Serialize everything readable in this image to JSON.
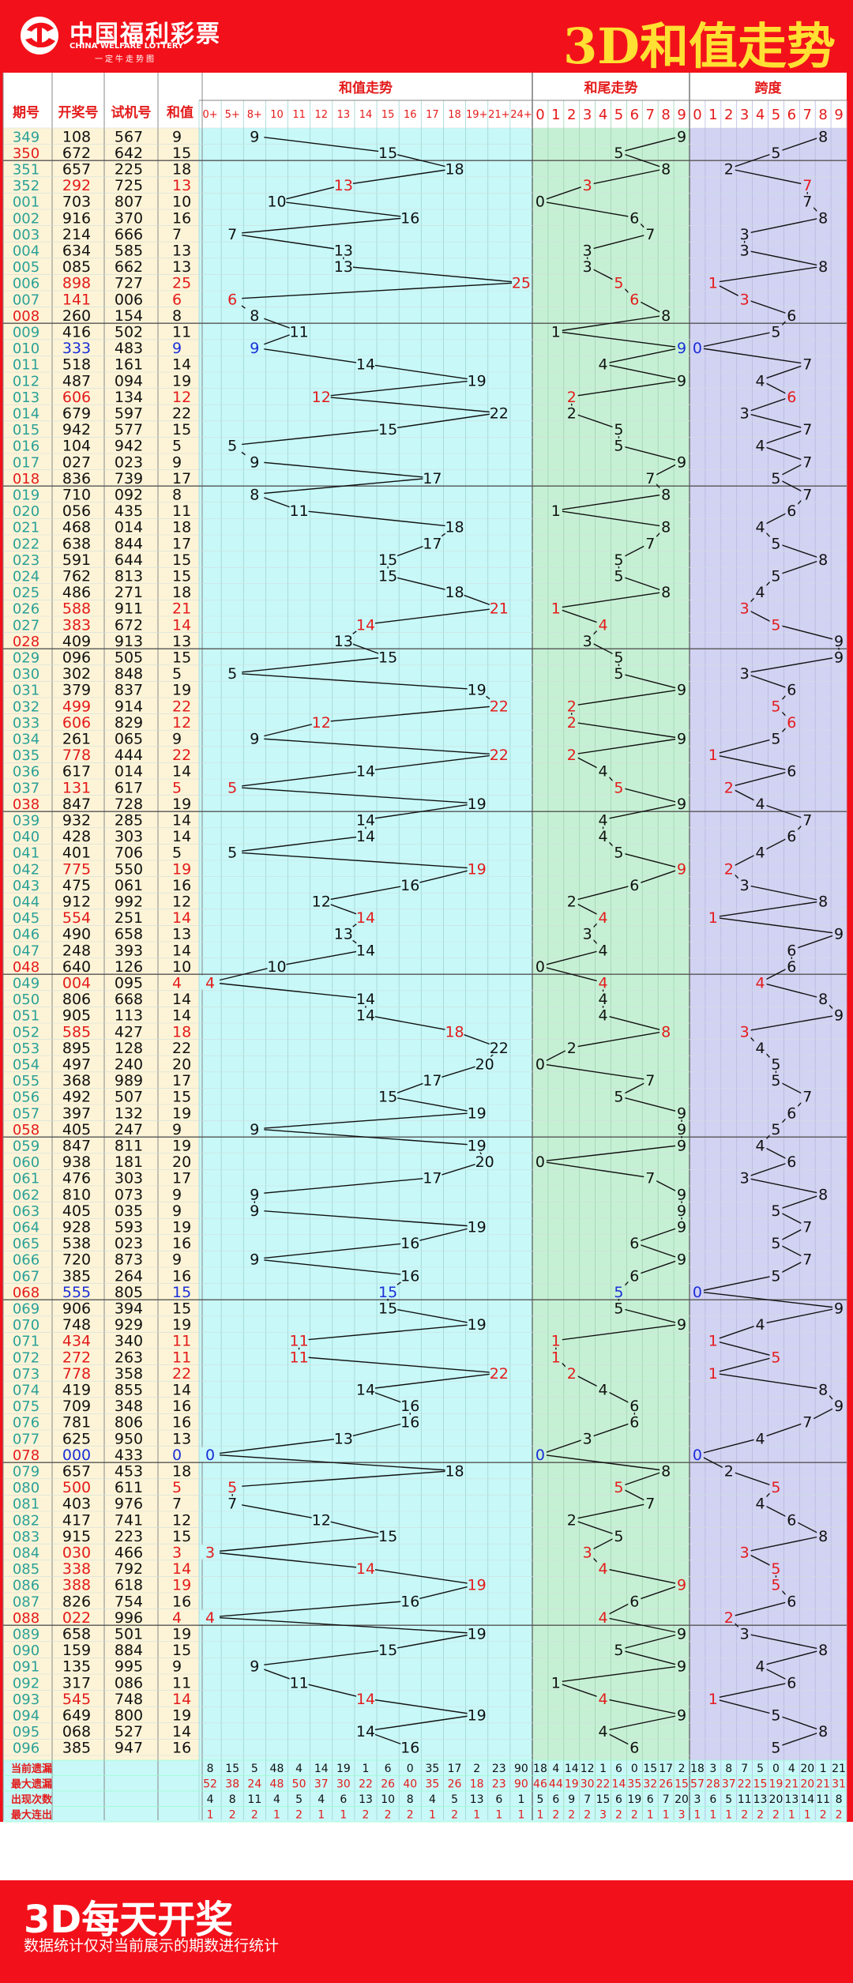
{
  "header": {
    "logo_name": "中国福利彩票",
    "logo_en": "CHINA WELFARE LOTTERY",
    "logo_sub": "一定牛走势图",
    "title": "3D和值走势"
  },
  "columns": {
    "period": "期号",
    "draw": "开奖号",
    "test": "试机号",
    "sum": "和值",
    "sum_trend": "和值走势",
    "tail_trend": "和尾走势",
    "span": "跨度"
  },
  "sum_bins": [
    "0+",
    "5+",
    "8+",
    "10",
    "11",
    "12",
    "13",
    "14",
    "15",
    "16",
    "17",
    "18",
    "19+",
    "21+",
    "24+"
  ],
  "digits": [
    "0",
    "1",
    "2",
    "3",
    "4",
    "5",
    "6",
    "7",
    "8",
    "9"
  ],
  "colors": {
    "red": "#e41b1b",
    "blue": "#1b2fd8",
    "black": "#111111",
    "frame": "#f2111a",
    "sum_bg": "#c8f8f8",
    "tail_bg": "#c6f0d4",
    "span_bg": "#d2d2f2",
    "left_bg": "#fdf4d7",
    "stat_bg": "#c8f8f8",
    "period_text": "#2aa198"
  },
  "chart_data": {
    "type": "line",
    "rows": [
      {
        "p": "349",
        "draw": "108",
        "test": "567",
        "sum": 9,
        "tail": 9,
        "span": 8
      },
      {
        "p": "350",
        "draw": "672",
        "test": "642",
        "sum": 15,
        "tail": 5,
        "span": 5
      },
      {
        "p": "351",
        "draw": "657",
        "test": "225",
        "sum": 18,
        "tail": 8,
        "span": 2
      },
      {
        "p": "352",
        "draw": "292",
        "test": "725",
        "sum": 13,
        "tail": 3,
        "span": 7
      },
      {
        "p": "001",
        "draw": "703",
        "test": "807",
        "sum": 10,
        "tail": 0,
        "span": 7
      },
      {
        "p": "002",
        "draw": "916",
        "test": "370",
        "sum": 16,
        "tail": 6,
        "span": 8
      },
      {
        "p": "003",
        "draw": "214",
        "test": "666",
        "sum": 7,
        "tail": 7,
        "span": 3
      },
      {
        "p": "004",
        "draw": "634",
        "test": "585",
        "sum": 13,
        "tail": 3,
        "span": 3
      },
      {
        "p": "005",
        "draw": "085",
        "test": "662",
        "sum": 13,
        "tail": 3,
        "span": 8
      },
      {
        "p": "006",
        "draw": "898",
        "test": "727",
        "sum": 25,
        "tail": 5,
        "span": 1
      },
      {
        "p": "007",
        "draw": "141",
        "test": "006",
        "sum": 6,
        "tail": 6,
        "span": 3
      },
      {
        "p": "008",
        "draw": "260",
        "test": "154",
        "sum": 8,
        "tail": 8,
        "span": 6
      },
      {
        "p": "009",
        "draw": "416",
        "test": "502",
        "sum": 11,
        "tail": 1,
        "span": 5
      },
      {
        "p": "010",
        "draw": "333",
        "test": "483",
        "sum": 9,
        "tail": 9,
        "span": 0
      },
      {
        "p": "011",
        "draw": "518",
        "test": "161",
        "sum": 14,
        "tail": 4,
        "span": 7
      },
      {
        "p": "012",
        "draw": "487",
        "test": "094",
        "sum": 19,
        "tail": 9,
        "span": 4
      },
      {
        "p": "013",
        "draw": "606",
        "test": "134",
        "sum": 12,
        "tail": 2,
        "span": 6
      },
      {
        "p": "014",
        "draw": "679",
        "test": "597",
        "sum": 22,
        "tail": 2,
        "span": 3
      },
      {
        "p": "015",
        "draw": "942",
        "test": "577",
        "sum": 15,
        "tail": 5,
        "span": 7
      },
      {
        "p": "016",
        "draw": "104",
        "test": "942",
        "sum": 5,
        "tail": 5,
        "span": 4
      },
      {
        "p": "017",
        "draw": "027",
        "test": "023",
        "sum": 9,
        "tail": 9,
        "span": 7
      },
      {
        "p": "018",
        "draw": "836",
        "test": "739",
        "sum": 17,
        "tail": 7,
        "span": 5
      },
      {
        "p": "019",
        "draw": "710",
        "test": "092",
        "sum": 8,
        "tail": 8,
        "span": 7
      },
      {
        "p": "020",
        "draw": "056",
        "test": "435",
        "sum": 11,
        "tail": 1,
        "span": 6
      },
      {
        "p": "021",
        "draw": "468",
        "test": "014",
        "sum": 18,
        "tail": 8,
        "span": 4
      },
      {
        "p": "022",
        "draw": "638",
        "test": "844",
        "sum": 17,
        "tail": 7,
        "span": 5
      },
      {
        "p": "023",
        "draw": "591",
        "test": "644",
        "sum": 15,
        "tail": 5,
        "span": 8
      },
      {
        "p": "024",
        "draw": "762",
        "test": "813",
        "sum": 15,
        "tail": 5,
        "span": 5
      },
      {
        "p": "025",
        "draw": "486",
        "test": "271",
        "sum": 18,
        "tail": 8,
        "span": 4
      },
      {
        "p": "026",
        "draw": "588",
        "test": "911",
        "sum": 21,
        "tail": 1,
        "span": 3
      },
      {
        "p": "027",
        "draw": "383",
        "test": "672",
        "sum": 14,
        "tail": 4,
        "span": 5
      },
      {
        "p": "028",
        "draw": "409",
        "test": "913",
        "sum": 13,
        "tail": 3,
        "span": 9
      },
      {
        "p": "029",
        "draw": "096",
        "test": "505",
        "sum": 15,
        "tail": 5,
        "span": 9
      },
      {
        "p": "030",
        "draw": "302",
        "test": "848",
        "sum": 5,
        "tail": 5,
        "span": 3
      },
      {
        "p": "031",
        "draw": "379",
        "test": "837",
        "sum": 19,
        "tail": 9,
        "span": 6
      },
      {
        "p": "032",
        "draw": "499",
        "test": "914",
        "sum": 22,
        "tail": 2,
        "span": 5
      },
      {
        "p": "033",
        "draw": "606",
        "test": "829",
        "sum": 12,
        "tail": 2,
        "span": 6
      },
      {
        "p": "034",
        "draw": "261",
        "test": "065",
        "sum": 9,
        "tail": 9,
        "span": 5
      },
      {
        "p": "035",
        "draw": "778",
        "test": "444",
        "sum": 22,
        "tail": 2,
        "span": 1
      },
      {
        "p": "036",
        "draw": "617",
        "test": "014",
        "sum": 14,
        "tail": 4,
        "span": 6
      },
      {
        "p": "037",
        "draw": "131",
        "test": "617",
        "sum": 5,
        "tail": 5,
        "span": 2
      },
      {
        "p": "038",
        "draw": "847",
        "test": "728",
        "sum": 19,
        "tail": 9,
        "span": 4
      },
      {
        "p": "039",
        "draw": "932",
        "test": "285",
        "sum": 14,
        "tail": 4,
        "span": 7
      },
      {
        "p": "040",
        "draw": "428",
        "test": "303",
        "sum": 14,
        "tail": 4,
        "span": 6
      },
      {
        "p": "041",
        "draw": "401",
        "test": "706",
        "sum": 5,
        "tail": 5,
        "span": 4
      },
      {
        "p": "042",
        "draw": "775",
        "test": "550",
        "sum": 19,
        "tail": 9,
        "span": 2
      },
      {
        "p": "043",
        "draw": "475",
        "test": "061",
        "sum": 16,
        "tail": 6,
        "span": 3
      },
      {
        "p": "044",
        "draw": "912",
        "test": "992",
        "sum": 12,
        "tail": 2,
        "span": 8
      },
      {
        "p": "045",
        "draw": "554",
        "test": "251",
        "sum": 14,
        "tail": 4,
        "span": 1
      },
      {
        "p": "046",
        "draw": "490",
        "test": "658",
        "sum": 13,
        "tail": 3,
        "span": 9
      },
      {
        "p": "047",
        "draw": "248",
        "test": "393",
        "sum": 14,
        "tail": 4,
        "span": 6
      },
      {
        "p": "048",
        "draw": "640",
        "test": "126",
        "sum": 10,
        "tail": 0,
        "span": 6
      },
      {
        "p": "049",
        "draw": "004",
        "test": "095",
        "sum": 4,
        "tail": 4,
        "span": 4
      },
      {
        "p": "050",
        "draw": "806",
        "test": "668",
        "sum": 14,
        "tail": 4,
        "span": 8
      },
      {
        "p": "051",
        "draw": "905",
        "test": "113",
        "sum": 14,
        "tail": 4,
        "span": 9
      },
      {
        "p": "052",
        "draw": "585",
        "test": "427",
        "sum": 18,
        "tail": 8,
        "span": 3
      },
      {
        "p": "053",
        "draw": "895",
        "test": "128",
        "sum": 22,
        "tail": 2,
        "span": 4
      },
      {
        "p": "054",
        "draw": "497",
        "test": "240",
        "sum": 20,
        "tail": 0,
        "span": 5
      },
      {
        "p": "055",
        "draw": "368",
        "test": "989",
        "sum": 17,
        "tail": 7,
        "span": 5
      },
      {
        "p": "056",
        "draw": "492",
        "test": "507",
        "sum": 15,
        "tail": 5,
        "span": 7
      },
      {
        "p": "057",
        "draw": "397",
        "test": "132",
        "sum": 19,
        "tail": 9,
        "span": 6
      },
      {
        "p": "058",
        "draw": "405",
        "test": "247",
        "sum": 9,
        "tail": 9,
        "span": 5
      },
      {
        "p": "059",
        "draw": "847",
        "test": "811",
        "sum": 19,
        "tail": 9,
        "span": 4
      },
      {
        "p": "060",
        "draw": "938",
        "test": "181",
        "sum": 20,
        "tail": 0,
        "span": 6
      },
      {
        "p": "061",
        "draw": "476",
        "test": "303",
        "sum": 17,
        "tail": 7,
        "span": 3
      },
      {
        "p": "062",
        "draw": "810",
        "test": "073",
        "sum": 9,
        "tail": 9,
        "span": 8
      },
      {
        "p": "063",
        "draw": "405",
        "test": "035",
        "sum": 9,
        "tail": 9,
        "span": 5
      },
      {
        "p": "064",
        "draw": "928",
        "test": "593",
        "sum": 19,
        "tail": 9,
        "span": 7
      },
      {
        "p": "065",
        "draw": "538",
        "test": "023",
        "sum": 16,
        "tail": 6,
        "span": 5
      },
      {
        "p": "066",
        "draw": "720",
        "test": "873",
        "sum": 9,
        "tail": 9,
        "span": 7
      },
      {
        "p": "067",
        "draw": "385",
        "test": "264",
        "sum": 16,
        "tail": 6,
        "span": 5
      },
      {
        "p": "068",
        "draw": "555",
        "test": "805",
        "sum": 15,
        "tail": 5,
        "span": 0
      },
      {
        "p": "069",
        "draw": "906",
        "test": "394",
        "sum": 15,
        "tail": 5,
        "span": 9
      },
      {
        "p": "070",
        "draw": "748",
        "test": "929",
        "sum": 19,
        "tail": 9,
        "span": 4
      },
      {
        "p": "071",
        "draw": "434",
        "test": "340",
        "sum": 11,
        "tail": 1,
        "span": 1
      },
      {
        "p": "072",
        "draw": "272",
        "test": "263",
        "sum": 11,
        "tail": 1,
        "span": 5
      },
      {
        "p": "073",
        "draw": "778",
        "test": "358",
        "sum": 22,
        "tail": 2,
        "span": 1
      },
      {
        "p": "074",
        "draw": "419",
        "test": "855",
        "sum": 14,
        "tail": 4,
        "span": 8
      },
      {
        "p": "075",
        "draw": "709",
        "test": "348",
        "sum": 16,
        "tail": 6,
        "span": 9
      },
      {
        "p": "076",
        "draw": "781",
        "test": "806",
        "sum": 16,
        "tail": 6,
        "span": 7
      },
      {
        "p": "077",
        "draw": "625",
        "test": "950",
        "sum": 13,
        "tail": 3,
        "span": 4
      },
      {
        "p": "078",
        "draw": "000",
        "test": "433",
        "sum": 0,
        "tail": 0,
        "span": 0
      },
      {
        "p": "079",
        "draw": "657",
        "test": "453",
        "sum": 18,
        "tail": 8,
        "span": 2
      },
      {
        "p": "080",
        "draw": "500",
        "test": "611",
        "sum": 5,
        "tail": 5,
        "span": 5
      },
      {
        "p": "081",
        "draw": "403",
        "test": "976",
        "sum": 7,
        "tail": 7,
        "span": 4
      },
      {
        "p": "082",
        "draw": "417",
        "test": "741",
        "sum": 12,
        "tail": 2,
        "span": 6
      },
      {
        "p": "083",
        "draw": "915",
        "test": "223",
        "sum": 15,
        "tail": 5,
        "span": 8
      },
      {
        "p": "084",
        "draw": "030",
        "test": "466",
        "sum": 3,
        "tail": 3,
        "span": 3
      },
      {
        "p": "085",
        "draw": "338",
        "test": "792",
        "sum": 14,
        "tail": 4,
        "span": 5
      },
      {
        "p": "086",
        "draw": "388",
        "test": "618",
        "sum": 19,
        "tail": 9,
        "span": 5
      },
      {
        "p": "087",
        "draw": "826",
        "test": "754",
        "sum": 16,
        "tail": 6,
        "span": 6
      },
      {
        "p": "088",
        "draw": "022",
        "test": "996",
        "sum": 4,
        "tail": 4,
        "span": 2
      },
      {
        "p": "089",
        "draw": "658",
        "test": "501",
        "sum": 19,
        "tail": 9,
        "span": 3
      },
      {
        "p": "090",
        "draw": "159",
        "test": "884",
        "sum": 15,
        "tail": 5,
        "span": 8
      },
      {
        "p": "091",
        "draw": "135",
        "test": "995",
        "sum": 9,
        "tail": 9,
        "span": 4
      },
      {
        "p": "092",
        "draw": "317",
        "test": "086",
        "sum": 11,
        "tail": 1,
        "span": 6
      },
      {
        "p": "093",
        "draw": "545",
        "test": "748",
        "sum": 14,
        "tail": 4,
        "span": 1
      },
      {
        "p": "094",
        "draw": "649",
        "test": "800",
        "sum": 19,
        "tail": 9,
        "span": 5
      },
      {
        "p": "095",
        "draw": "068",
        "test": "527",
        "sum": 14,
        "tail": 4,
        "span": 8
      },
      {
        "p": "096",
        "draw": "385",
        "test": "947",
        "sum": 16,
        "tail": 6,
        "span": 5
      }
    ],
    "blue_rows": [
      "010",
      "068",
      "078"
    ],
    "stats": [
      {
        "label": "当前遗漏",
        "sum": [
          8,
          15,
          5,
          48,
          4,
          14,
          19,
          1,
          6,
          0,
          35,
          17,
          2,
          23,
          90
        ],
        "tail": [
          18,
          4,
          14,
          12,
          1,
          6,
          0,
          15,
          17,
          2
        ],
        "span": [
          18,
          3,
          8,
          7,
          5,
          0,
          4,
          20,
          1,
          21
        ]
      },
      {
        "label": "最大遗漏",
        "sum": [
          52,
          38,
          24,
          48,
          50,
          37,
          30,
          22,
          26,
          40,
          35,
          26,
          18,
          23,
          90
        ],
        "tail": [
          46,
          44,
          19,
          30,
          22,
          14,
          35,
          32,
          26,
          15
        ],
        "span": [
          57,
          28,
          37,
          22,
          15,
          19,
          21,
          20,
          21,
          31
        ]
      },
      {
        "label": "出现次数",
        "sum": [
          4,
          8,
          11,
          4,
          5,
          4,
          6,
          13,
          10,
          8,
          4,
          5,
          13,
          6,
          1
        ],
        "tail": [
          5,
          6,
          9,
          7,
          15,
          6,
          19,
          6,
          7,
          20
        ],
        "span": [
          3,
          6,
          5,
          11,
          13,
          20,
          13,
          14,
          11,
          8
        ]
      },
      {
        "label": "最大连出",
        "sum": [
          1,
          2,
          2,
          1,
          2,
          1,
          1,
          2,
          2,
          2,
          1,
          2,
          1,
          1,
          1
        ],
        "tail": [
          1,
          2,
          2,
          2,
          3,
          2,
          2,
          1,
          1,
          3
        ],
        "span": [
          1,
          1,
          1,
          2,
          2,
          2,
          1,
          1,
          2,
          2
        ]
      }
    ]
  },
  "footer": {
    "title": "3D每天开奖",
    "note": "数据统计仅对当前展示的期数进行统计"
  }
}
